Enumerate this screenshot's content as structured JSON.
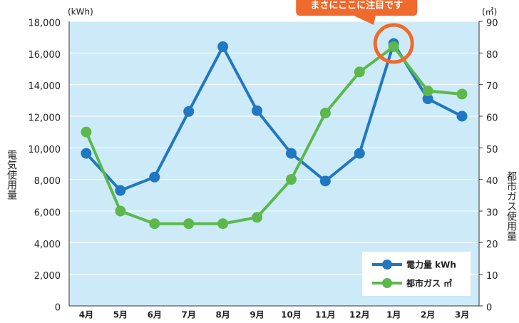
{
  "chart_data": {
    "type": "line",
    "categories": [
      "4月",
      "5月",
      "6月",
      "7月",
      "8月",
      "9月",
      "10月",
      "11月",
      "12月",
      "1月",
      "2月",
      "3月"
    ],
    "series": [
      {
        "name": "電力量 kWh",
        "color": "#1f78c1",
        "values": [
          9650,
          7300,
          8150,
          12300,
          16400,
          12350,
          9650,
          7900,
          9650,
          16600,
          13100,
          12000
        ]
      },
      {
        "name": "都市ガス ㎥",
        "color": "#5cb84a",
        "axis": "y2",
        "values": [
          55,
          30,
          26,
          26,
          26,
          28,
          40,
          61,
          74,
          82,
          68,
          67
        ]
      }
    ],
    "ylim": [
      0,
      18000
    ],
    "yticks": [
      0,
      {
        "value": 2000,
        "label": "2,000"
      },
      {
        "value": 4000,
        "label": "4,000"
      },
      {
        "value": 6000,
        "label": "6,000"
      },
      {
        "value": 8000,
        "label": "8,000"
      },
      {
        "value": 10000,
        "label": "10,000"
      },
      {
        "value": 12000,
        "label": "12,000"
      },
      {
        "value": 14000,
        "label": "14,000"
      },
      {
        "value": 16000,
        "label": "16,000"
      },
      {
        "value": 18000,
        "label": "18,000"
      }
    ],
    "y2lim": [
      0,
      90
    ],
    "y2ticks": [
      0,
      10,
      20,
      30,
      40,
      50,
      60,
      70,
      80,
      90
    ],
    "y_label": "電気使用量",
    "y2_label": "都市ガス使用量",
    "y_unit": "(kWh)",
    "y2_unit": "(㎥)",
    "annotation": "まさにここに注目です",
    "grid": true,
    "legend": "lower right"
  }
}
